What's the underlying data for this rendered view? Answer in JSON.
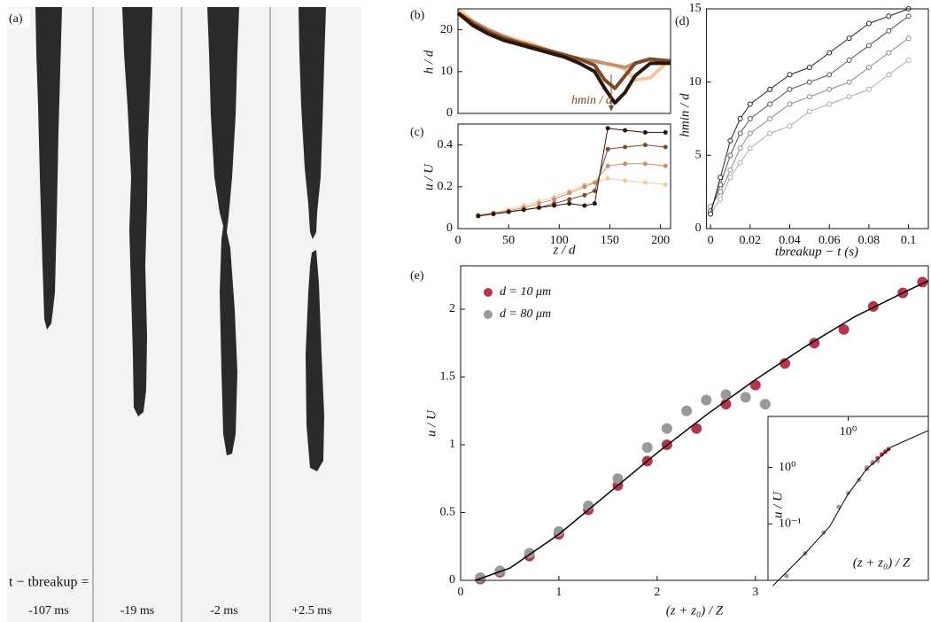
{
  "panel_a": {
    "label": "(a)",
    "caption": "t − tbreakup =",
    "frames": [
      "-107 ms",
      "-19 ms",
      "-2 ms",
      "+2.5 ms"
    ]
  },
  "chart_data": [
    {
      "type": "line",
      "label": "(b)",
      "ylabel": "h / d",
      "annotation": "hmin / d",
      "xlim": [
        0,
        210
      ],
      "ylim": [
        0,
        25
      ],
      "yticks": [
        0,
        10,
        20
      ],
      "x": [
        0,
        15,
        30,
        45,
        60,
        75,
        90,
        105,
        120,
        135,
        145,
        155,
        165,
        175,
        190,
        210
      ],
      "series": [
        {
          "color": "#f5c898",
          "values": [
            25,
            22,
            20,
            18.5,
            17.5,
            16.5,
            15,
            14,
            13,
            12.5,
            12,
            11.5,
            10.5,
            8,
            8.5,
            13
          ]
        },
        {
          "color": "#c8906a",
          "values": [
            24,
            22,
            20,
            18.5,
            17,
            16,
            15,
            14,
            13,
            12.5,
            12,
            11.5,
            11,
            12,
            13,
            12.5
          ]
        },
        {
          "color": "#7a4a2a",
          "values": [
            24,
            21.5,
            19.5,
            18,
            17,
            16,
            15,
            14,
            13,
            11.5,
            8,
            6,
            9,
            12,
            13,
            12.5
          ]
        },
        {
          "color": "#2b1408",
          "values": [
            24,
            21,
            19,
            17.5,
            16.5,
            15.5,
            14.5,
            13.5,
            12,
            10,
            6,
            2.5,
            5,
            9,
            12,
            12
          ]
        }
      ]
    },
    {
      "type": "line",
      "label": "(c)",
      "ylabel": "u / U",
      "xlabel": "z / d",
      "xlim": [
        0,
        210
      ],
      "xticks": [
        0,
        50,
        100,
        150,
        200
      ],
      "ylim": [
        0,
        0.5
      ],
      "yticks": [
        0,
        0.2,
        0.4
      ],
      "x": [
        20,
        35,
        50,
        65,
        80,
        95,
        110,
        125,
        135,
        148,
        165,
        185,
        205
      ],
      "series": [
        {
          "color": "#f5c898",
          "marker": "dot",
          "values": [
            0.065,
            0.075,
            0.09,
            0.11,
            0.13,
            0.15,
            0.18,
            0.21,
            0.22,
            0.24,
            0.23,
            0.22,
            0.21
          ]
        },
        {
          "color": "#c8906a",
          "marker": "dot",
          "values": [
            0.065,
            0.075,
            0.085,
            0.1,
            0.12,
            0.14,
            0.17,
            0.2,
            0.22,
            0.3,
            0.31,
            0.31,
            0.3
          ]
        },
        {
          "color": "#7a4a2a",
          "marker": "dot",
          "values": [
            0.06,
            0.07,
            0.08,
            0.09,
            0.1,
            0.12,
            0.14,
            0.16,
            0.18,
            0.38,
            0.39,
            0.4,
            0.39
          ]
        },
        {
          "color": "#2b1408",
          "marker": "dot",
          "values": [
            0.06,
            0.07,
            0.08,
            0.09,
            0.1,
            0.11,
            0.12,
            0.11,
            0.12,
            0.48,
            0.47,
            0.46,
            0.46
          ]
        }
      ]
    },
    {
      "type": "line",
      "label": "(d)",
      "ylabel": "hmin / d",
      "xlabel": "tbreakup − t (s)",
      "xlim": [
        -0.002,
        0.11
      ],
      "xticks": [
        0,
        0.02,
        0.04,
        0.06,
        0.08,
        0.1
      ],
      "ylim": [
        0,
        15
      ],
      "yticks": [
        0,
        5,
        10,
        15
      ],
      "x": [
        0,
        0.005,
        0.01,
        0.015,
        0.02,
        0.03,
        0.04,
        0.05,
        0.06,
        0.07,
        0.08,
        0.09,
        0.1
      ],
      "series": [
        {
          "color": "#aaaaaa",
          "marker": "open",
          "values": [
            1,
            2,
            3.5,
            4.5,
            5.5,
            6.5,
            7,
            8,
            8.5,
            9,
            9.5,
            10.5,
            11.5
          ]
        },
        {
          "color": "#888888",
          "marker": "open",
          "values": [
            1.5,
            2.5,
            4,
            5.5,
            6.5,
            7.5,
            8.5,
            9,
            9.5,
            10,
            11,
            12,
            13
          ]
        },
        {
          "color": "#555555",
          "marker": "open",
          "values": [
            1.2,
            3,
            5,
            6.5,
            7.5,
            8.5,
            9.5,
            10,
            10.5,
            11.5,
            12.5,
            13.5,
            14.5
          ]
        },
        {
          "color": "#222222",
          "marker": "open",
          "values": [
            1,
            3.5,
            6,
            7.5,
            8.5,
            9.5,
            10.5,
            11,
            12,
            13,
            14,
            14.5,
            15
          ]
        }
      ]
    },
    {
      "type": "line",
      "label": "(e)",
      "ylabel": "u / U",
      "xlabel": "(z + z₀) / Z",
      "xlim": [
        0,
        4.76
      ],
      "xticks": [
        0,
        1,
        2,
        3
      ],
      "ylim": [
        0,
        2.32
      ],
      "yticks": [
        0,
        0.5,
        1,
        1.5,
        2
      ],
      "series": [
        {
          "name": "d = 10 μm",
          "color": "#b5354f",
          "marker": "disk",
          "x": [
            0.2,
            0.4,
            0.7,
            1,
            1.3,
            1.6,
            1.9,
            2.1,
            2.4,
            2.7,
            3,
            3.3,
            3.6,
            3.9,
            4.2,
            4.5,
            4.7
          ],
          "values": [
            0.01,
            0.06,
            0.18,
            0.34,
            0.52,
            0.7,
            0.88,
            1.0,
            1.12,
            1.3,
            1.44,
            1.6,
            1.75,
            1.85,
            2.02,
            2.12,
            2.2
          ]
        },
        {
          "name": "d = 80 μm",
          "color": "#999999",
          "marker": "disk",
          "x": [
            0.2,
            0.4,
            0.7,
            1,
            1.3,
            1.6,
            1.9,
            2.1,
            2.3,
            2.5,
            2.7,
            2.9,
            3.1
          ],
          "values": [
            0.02,
            0.07,
            0.2,
            0.36,
            0.55,
            0.75,
            0.98,
            1.12,
            1.25,
            1.33,
            1.37,
            1.35,
            1.3
          ]
        },
        {
          "color": "#000000",
          "x": [
            0.15,
            0.5,
            1,
            1.5,
            2,
            2.5,
            3,
            3.5,
            4,
            4.5,
            4.76
          ],
          "values": [
            0,
            0.09,
            0.34,
            0.64,
            0.94,
            1.22,
            1.48,
            1.72,
            1.94,
            2.12,
            2.21
          ]
        }
      ]
    },
    {
      "type": "line",
      "ylabel": "u / U",
      "xlabel": "(z + z₀) / Z",
      "xlog": true,
      "ylog": true,
      "xlim": [
        0.05,
        20
      ],
      "xticks": [
        {
          "value": 1,
          "label": "10⁰"
        }
      ],
      "ylim": [
        0.01,
        8
      ],
      "yticks": [
        {
          "value": 1,
          "label": "10⁰"
        },
        {
          "value": 0.1,
          "label": "10⁻¹"
        }
      ],
      "series": [
        {
          "color": "#b5354f",
          "marker": "small",
          "x": [
            2,
            2.5,
            3,
            3.5,
            4,
            4.5
          ],
          "values": [
            0.95,
            1.2,
            1.45,
            1.7,
            1.9,
            2.1
          ]
        },
        {
          "color": "#999999",
          "marker": "small",
          "x": [
            0.1,
            0.2,
            0.4,
            0.7,
            1,
            1.5,
            2,
            2.5,
            3
          ],
          "values": [
            0.012,
            0.03,
            0.07,
            0.2,
            0.35,
            0.6,
            1.0,
            1.25,
            1.3
          ]
        },
        {
          "color": "#000000",
          "x": [
            0.06,
            0.2,
            0.5,
            1,
            2,
            5,
            20
          ],
          "values": [
            0.008,
            0.03,
            0.09,
            0.34,
            0.94,
            2.3,
            4.5
          ]
        }
      ]
    }
  ]
}
